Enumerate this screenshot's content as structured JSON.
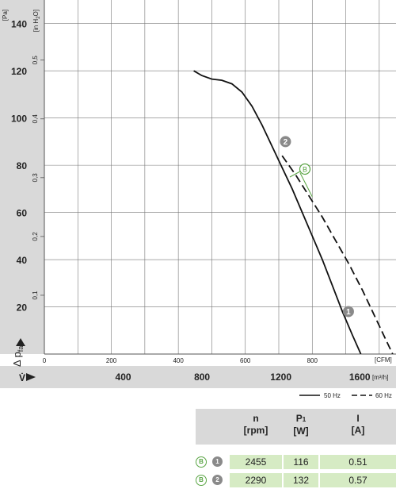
{
  "chart_data": {
    "type": "line",
    "y_axis_label": "Δ p",
    "y_axis_label_sub": "fa",
    "y_units_left": "[Pa]",
    "y_units_right": "[in H",
    "y_units_right_sub": "2",
    "y_units_right_end": "O]",
    "x_units_cfm": "[CFM]",
    "x_units_m3h": "[m³/h]",
    "x_axis_label": "V̇",
    "y_ticks_pa": [
      "20",
      "40",
      "60",
      "80",
      "100",
      "120",
      "140"
    ],
    "y_ticks_inh2o": [
      "0,1",
      "0,2",
      "0,3",
      "0,4",
      "0,5"
    ],
    "x_ticks_cfm": [
      "0",
      "200",
      "400",
      "600",
      "800"
    ],
    "x_ticks_m3h": [
      "400",
      "800",
      "1200",
      "1600"
    ],
    "ylim_pa": [
      0,
      150
    ],
    "xlim_cfm": [
      0,
      1050
    ],
    "grid": true,
    "series": [
      {
        "name": "50 Hz",
        "style": "solid",
        "color": "#111111",
        "points": [
          [
            446,
            120
          ],
          [
            470,
            118
          ],
          [
            500,
            116.5
          ],
          [
            530,
            116
          ],
          [
            560,
            114.5
          ],
          [
            590,
            111
          ],
          [
            620,
            105
          ],
          [
            650,
            97
          ],
          [
            680,
            88
          ],
          [
            710,
            79
          ],
          [
            740,
            70
          ],
          [
            770,
            60
          ],
          [
            800,
            50
          ],
          [
            830,
            40
          ],
          [
            860,
            29
          ],
          [
            890,
            18
          ],
          [
            920,
            8
          ],
          [
            945,
            0
          ]
        ]
      },
      {
        "name": "60 Hz",
        "style": "dashed",
        "color": "#111111",
        "points": [
          [
            710,
            84
          ],
          [
            750,
            76
          ],
          [
            790,
            67
          ],
          [
            830,
            58
          ],
          [
            870,
            48
          ],
          [
            910,
            38
          ],
          [
            950,
            27
          ],
          [
            990,
            15
          ],
          [
            1020,
            6
          ],
          [
            1040,
            0
          ]
        ]
      }
    ],
    "operating_points": [
      {
        "label": "2",
        "x": 720,
        "y": 90
      },
      {
        "label": "1",
        "x": 908,
        "y": 18
      }
    ],
    "annotation": {
      "label": "B"
    }
  },
  "table": {
    "headers": [
      {
        "main": "n",
        "unit": "[rpm]",
        "sub": ""
      },
      {
        "main": "P",
        "sub": "1",
        "unit": "[W]"
      },
      {
        "main": "I",
        "unit": "[A]",
        "sub": ""
      }
    ],
    "rows": [
      {
        "variant": "B",
        "point": "1",
        "n": "2455",
        "p1": "116",
        "i": "0.51"
      },
      {
        "variant": "B",
        "point": "2",
        "n": "2290",
        "p1": "132",
        "i": "0.57"
      }
    ]
  }
}
